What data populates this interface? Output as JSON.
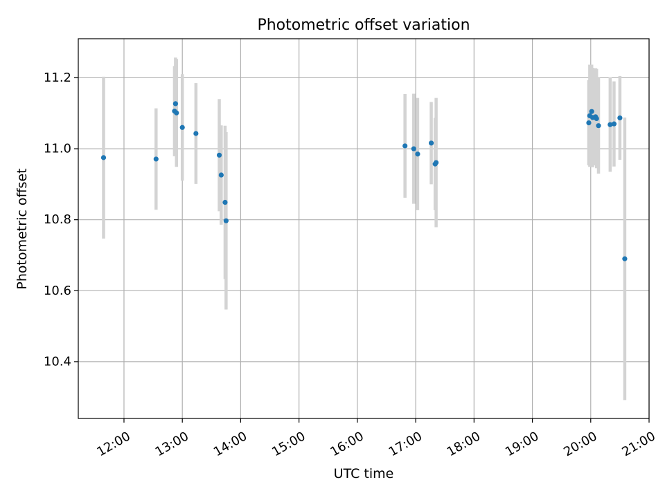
{
  "chart_data": {
    "type": "scatter",
    "title": "Photometric offset variation",
    "xlabel": "UTC time",
    "ylabel": "Photometric offset",
    "xlim": [
      "11:13",
      "21:00"
    ],
    "ylim": [
      10.24,
      11.31
    ],
    "x_ticks": [
      "12:00",
      "13:00",
      "14:00",
      "15:00",
      "16:00",
      "17:00",
      "18:00",
      "19:00",
      "20:00",
      "21:00"
    ],
    "y_ticks": [
      10.4,
      10.6,
      10.8,
      11.0,
      11.2
    ],
    "y_tick_labels": [
      "10.4",
      "10.6",
      "10.8",
      "11.0",
      "11.2"
    ],
    "grid": true,
    "colors": {
      "point": "#1f77b4",
      "error_bar": "#d3d3d3"
    },
    "points": [
      {
        "x": "11:39",
        "y": 10.975,
        "err": 0.228
      },
      {
        "x": "12:33",
        "y": 10.971,
        "err": 0.143
      },
      {
        "x": "12:52",
        "y": 11.106,
        "err": 0.127
      },
      {
        "x": "12:53",
        "y": 11.127,
        "err": 0.13
      },
      {
        "x": "12:54",
        "y": 11.101,
        "err": 0.152
      },
      {
        "x": "13:00",
        "y": 11.06,
        "err": 0.15
      },
      {
        "x": "13:14",
        "y": 11.043,
        "err": 0.142
      },
      {
        "x": "13:38",
        "y": 10.982,
        "err": 0.158
      },
      {
        "x": "13:40",
        "y": 10.926,
        "err": 0.14
      },
      {
        "x": "13:44",
        "y": 10.849,
        "err": 0.216
      },
      {
        "x": "13:45",
        "y": 10.797,
        "err": 0.25
      },
      {
        "x": "16:49",
        "y": 11.008,
        "err": 0.146
      },
      {
        "x": "16:58",
        "y": 11.0,
        "err": 0.155
      },
      {
        "x": "17:02",
        "y": 10.985,
        "err": 0.158
      },
      {
        "x": "17:16",
        "y": 11.016,
        "err": 0.116
      },
      {
        "x": "17:20",
        "y": 10.957,
        "err": 0.13
      },
      {
        "x": "17:21",
        "y": 10.961,
        "err": 0.182
      },
      {
        "x": "19:58",
        "y": 11.073,
        "err": 0.12
      },
      {
        "x": "19:59",
        "y": 11.093,
        "err": 0.144
      },
      {
        "x": "20:01",
        "y": 11.105,
        "err": 0.132
      },
      {
        "x": "20:02",
        "y": 11.088,
        "err": 0.14
      },
      {
        "x": "20:05",
        "y": 11.09,
        "err": 0.137
      },
      {
        "x": "20:06",
        "y": 11.085,
        "err": 0.14
      },
      {
        "x": "20:08",
        "y": 11.065,
        "err": 0.135
      },
      {
        "x": "20:20",
        "y": 11.068,
        "err": 0.133
      },
      {
        "x": "20:24",
        "y": 11.07,
        "err": 0.12
      },
      {
        "x": "20:30",
        "y": 11.087,
        "err": 0.118
      },
      {
        "x": "20:35",
        "y": 10.69,
        "err": 0.398
      }
    ]
  }
}
